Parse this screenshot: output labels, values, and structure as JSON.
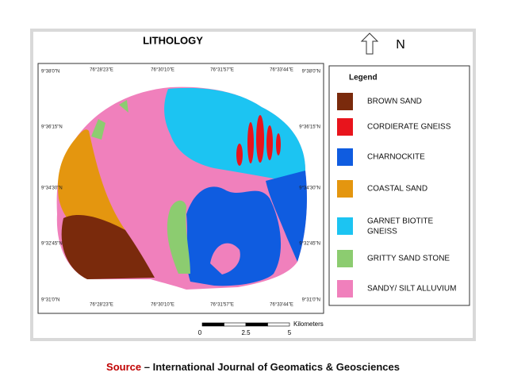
{
  "title": "LITHOLOGY",
  "north": "N",
  "top_lon_labels": [
    "76°28'23\"E",
    "76°30'10\"E",
    "76°31'57\"E",
    "76°33'44\"E"
  ],
  "bottom_lon_labels": [
    "76°28'23\"E",
    "76°30'10\"E",
    "76°31'57\"E",
    "76°33'44\"E"
  ],
  "left_lat_labels": [
    "9°38'0\"N",
    "9°36'15\"N",
    "9°34'30\"N",
    "9°32'45\"N",
    "9°31'0\"N"
  ],
  "right_lat_labels": [
    "9°38'0\"N",
    "9°36'15\"N",
    "9°34'30\"N",
    "9°32'45\"N",
    "9°31'0\"N"
  ],
  "legend": {
    "title": "Legend",
    "items": [
      {
        "lines": [
          "BROWN SAND"
        ],
        "color": "#7a2a0c"
      },
      {
        "lines": [
          "CORDIERATE GNEISS"
        ],
        "color": "#e8141c"
      },
      {
        "lines": [
          "CHARNOCKITE"
        ],
        "color": "#0f5ce0"
      },
      {
        "lines": [
          "COASTAL SAND"
        ],
        "color": "#e4960f"
      },
      {
        "lines": [
          "GARNET BIOTITE",
          "GNEISS"
        ],
        "color": "#1cc4f2"
      },
      {
        "lines": [
          "GRITTY SAND STONE"
        ],
        "color": "#8ccc70"
      },
      {
        "lines": [
          "SANDY/ SILT ALLUVIUM"
        ],
        "color": "#f080bc"
      }
    ]
  },
  "scale_bar": {
    "ticks": [
      "0",
      "2.5",
      "5"
    ],
    "unit": "Kilometers"
  },
  "source": {
    "label": "Source",
    "text": " – International Journal of Geomatics & Geosciences"
  }
}
